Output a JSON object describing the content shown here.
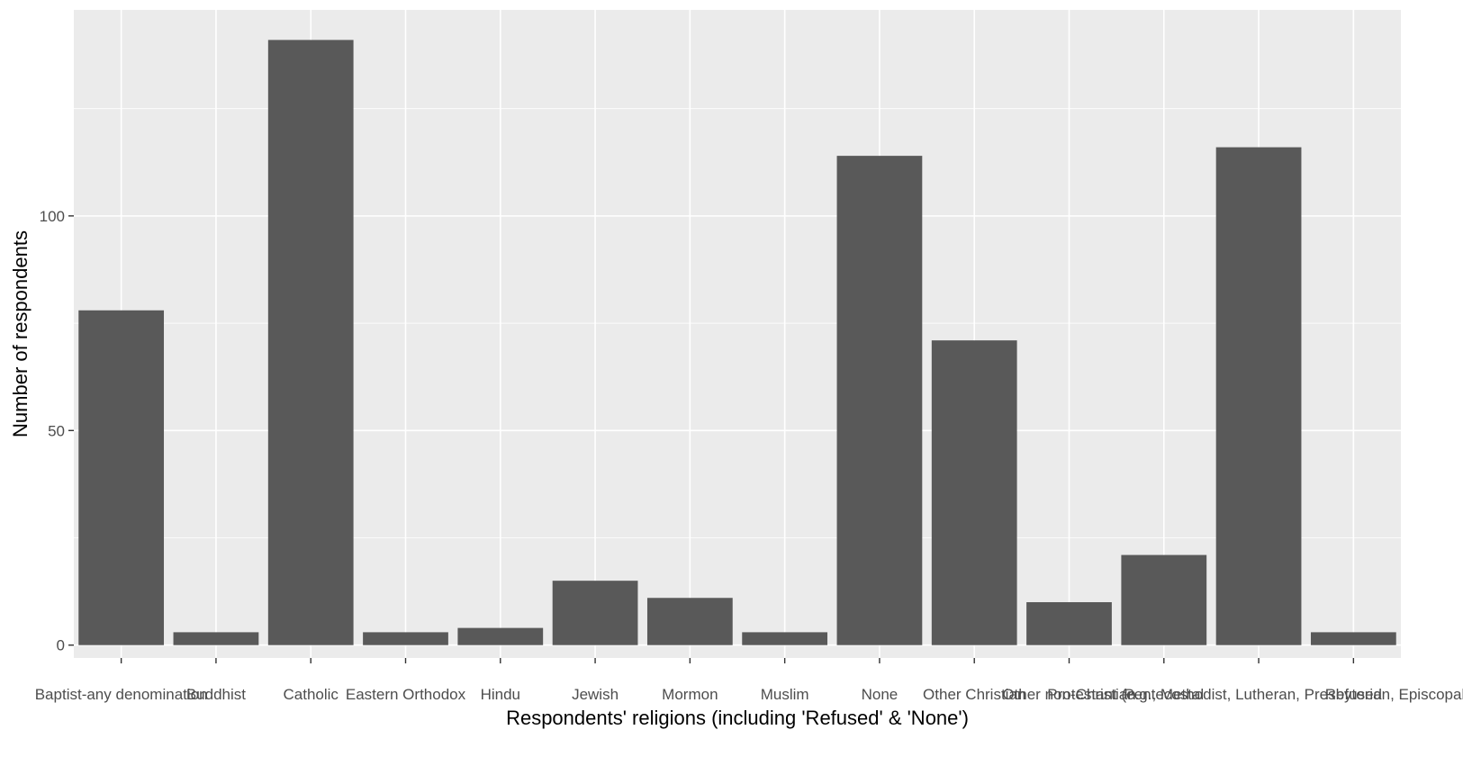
{
  "chart_data": {
    "type": "bar",
    "xlabel": "Respondents' religions (including 'Refused' & 'None')",
    "ylabel": "Number of respondents",
    "categories": [
      "Baptist-any denomination",
      "Buddhist",
      "Catholic",
      "Eastern Orthodox",
      "Hindu",
      "Jewish",
      "Mormon",
      "Muslim",
      "None",
      "Other Christian",
      "Other non-Christian",
      "Pentecostal",
      "Protestant (e.g., Methodist, Lutheran, Presbyterian, Episcopal)",
      "Refused"
    ],
    "values": [
      78,
      3,
      141,
      3,
      4,
      15,
      11,
      3,
      114,
      71,
      10,
      21,
      116,
      3
    ],
    "ylim": [
      -3,
      148
    ],
    "yticks": [
      0,
      50,
      100
    ],
    "grid": true,
    "colors": {
      "panel": "#ebebeb",
      "grid_major": "#ffffff",
      "bar": "#595959",
      "tick_text": "#4d4d4d",
      "title_text": "#000000"
    }
  }
}
